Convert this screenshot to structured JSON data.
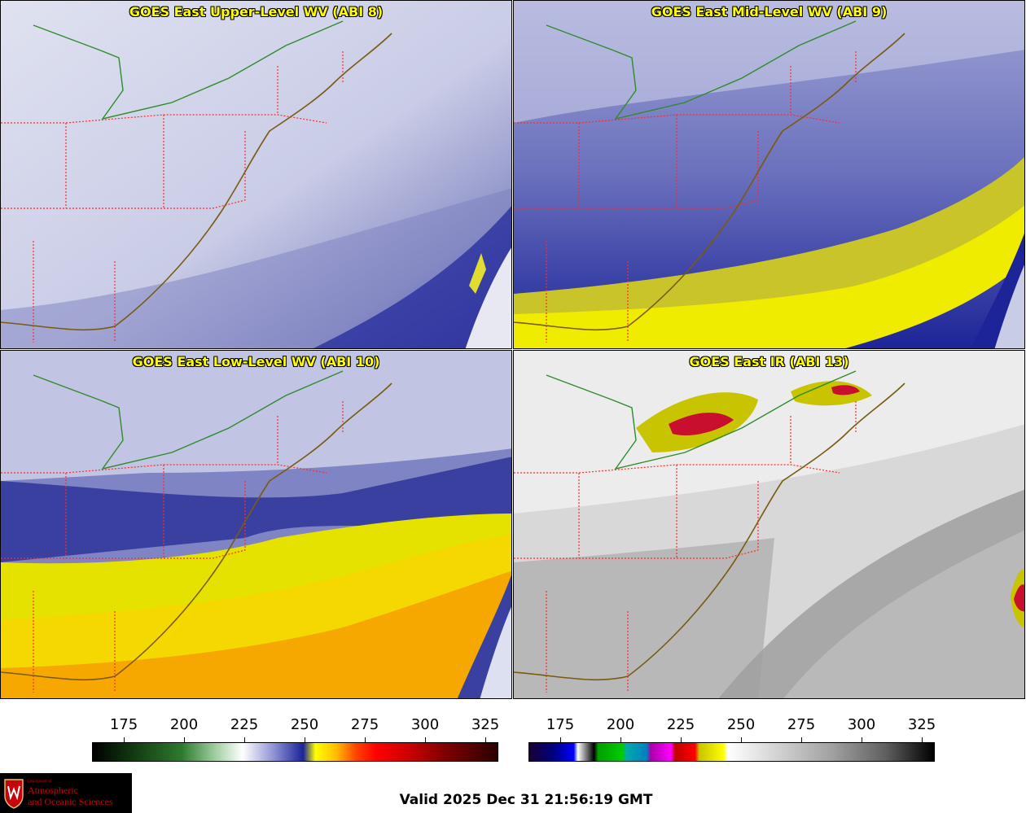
{
  "panels": [
    {
      "title": "GOES East Upper-Level WV (ABI 8)",
      "colormap": "wv"
    },
    {
      "title": "GOES East Mid-Level WV (ABI 9)",
      "colormap": "wv"
    },
    {
      "title": "GOES East Low-Level WV (ABI 10)",
      "colormap": "wv"
    },
    {
      "title": "GOES East IR (ABI 13)",
      "colormap": "ir"
    }
  ],
  "colorbars": [
    {
      "ticks": [
        "175",
        "200",
        "225",
        "250",
        "275",
        "300",
        "325"
      ]
    },
    {
      "ticks": [
        "175",
        "200",
        "225",
        "250",
        "275",
        "300",
        "325"
      ]
    }
  ],
  "logo": {
    "small": "Department of",
    "line1": "Atmospheric",
    "line2": "and Oceanic Sciences"
  },
  "valid_text": "Valid 2025 Dec 31 21:56:19 GMT",
  "colors": {
    "state_borders": "#ff2a2a",
    "coastline": "#7a5a10",
    "country_border": "#2e8b2e",
    "title_text": "#ffff00",
    "logo_bg": "#000000",
    "logo_text": "#c5050c"
  }
}
